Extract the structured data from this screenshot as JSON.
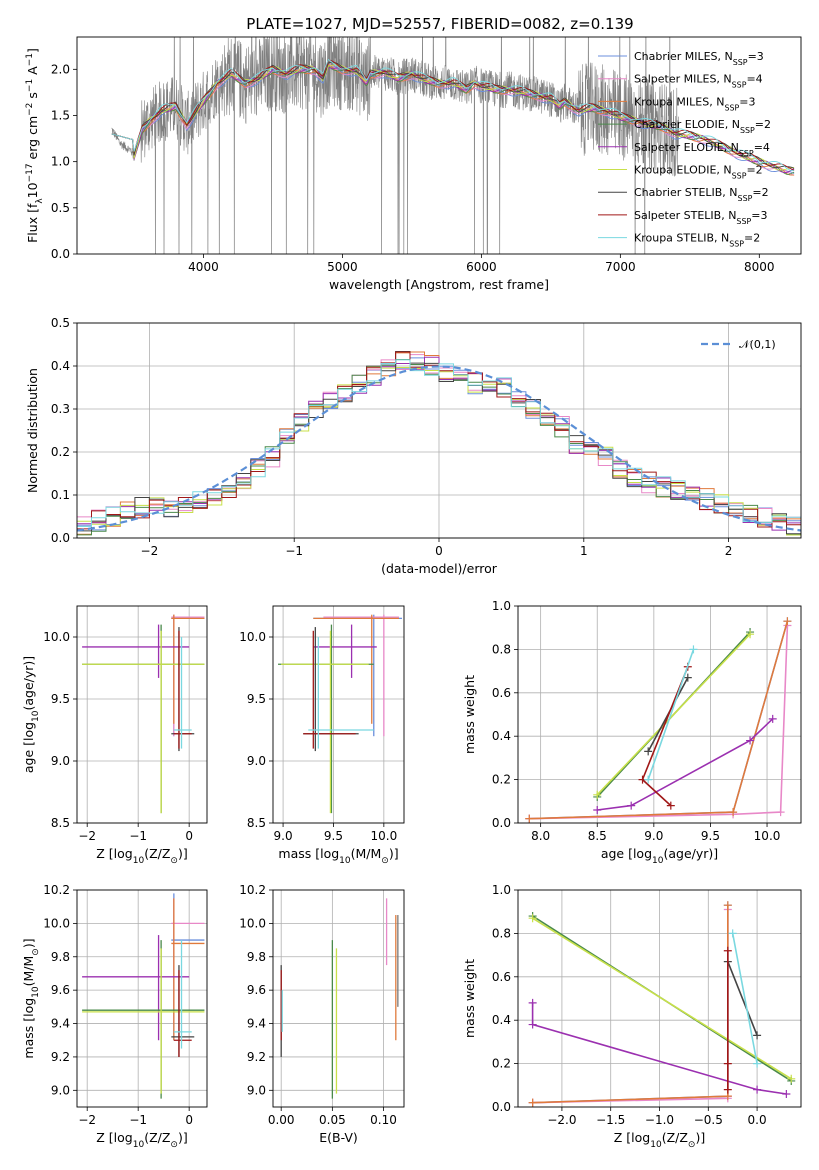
{
  "figure": {
    "title": "PLATE=1027, MJD=52557, FIBERID=0082, z=0.139"
  },
  "chart_data": [
    {
      "id": "spectrum",
      "type": "line",
      "xlabel": "wavelength [Angstrom, rest frame]",
      "ylabel": "Flux [f$_{\\lambda}$10$^{-17}$ erg cm$^{-2}$ s$^{-1}$ A$^{-1}$]",
      "xlim": [
        3090,
        8300
      ],
      "ylim": [
        0,
        2.35
      ],
      "xticks": [
        4000,
        5000,
        6000,
        7000,
        8000
      ],
      "yticks": [
        0.0,
        0.5,
        1.0,
        1.5,
        2.0
      ],
      "ytick_labels": [
        "0.0",
        "0.5",
        "1.0",
        "1.5",
        "2.0"
      ],
      "grid": false,
      "legend_position": "right",
      "data_curve": {
        "color": "#808080",
        "x": [
          3340,
          3400,
          3480,
          3500,
          3560,
          3620,
          3700,
          3800,
          3880,
          3930,
          4000,
          4100,
          4200,
          4300,
          4400,
          4500,
          4600,
          4700,
          4800,
          4860,
          4900,
          5000,
          5100,
          5175,
          5200,
          5300,
          5400,
          5500,
          5600,
          5700,
          5800,
          5890,
          5950,
          6000,
          6100,
          6200,
          6300,
          6400,
          6500,
          6563,
          6600,
          6700,
          6800,
          6900,
          7000,
          7100,
          7200,
          7300,
          7400,
          7500,
          7600,
          7700,
          7800,
          7900,
          8000,
          8100,
          8200
        ],
        "y": [
          1.35,
          1.2,
          1.12,
          1.05,
          1.35,
          1.45,
          1.55,
          1.6,
          1.4,
          1.5,
          1.65,
          1.85,
          1.95,
          1.85,
          1.9,
          2.0,
          1.95,
          2.0,
          2.0,
          1.9,
          2.05,
          2.0,
          1.98,
          1.85,
          1.95,
          1.97,
          1.9,
          1.95,
          1.88,
          1.85,
          1.85,
          1.78,
          1.85,
          1.82,
          1.78,
          1.78,
          1.75,
          1.72,
          1.68,
          1.6,
          1.65,
          1.55,
          1.58,
          1.55,
          1.48,
          1.45,
          1.4,
          1.38,
          1.3,
          1.28,
          1.25,
          1.18,
          1.12,
          1.05,
          1.0,
          0.95,
          0.9
        ]
      },
      "series": [
        {
          "name": "Chabrier MILES, N$_{SSP}$=3",
          "color": "#6b8fdc"
        },
        {
          "name": "Salpeter MILES, N$_{SSP}$=4",
          "color": "#e888c8"
        },
        {
          "name": "Kroupa MILES, N$_{SSP}$=3",
          "color": "#e07a3c"
        },
        {
          "name": "Chabrier ELODIE, N$_{SSP}$=2",
          "color": "#4a8a4a"
        },
        {
          "name": "Salpeter ELODIE, N$_{SSP}$=4",
          "color": "#9b30b0"
        },
        {
          "name": "Kroupa ELODIE, N$_{SSP}$=2",
          "color": "#c8e04a"
        },
        {
          "name": "Chabrier STELIB, N$_{SSP}$=2",
          "color": "#444444"
        },
        {
          "name": "Salpeter STELIB, N$_{SSP}$=3",
          "color": "#a01818"
        },
        {
          "name": "Kroupa STELIB, N$_{SSP}$=2",
          "color": "#7ad8e0"
        }
      ]
    },
    {
      "id": "residuals",
      "type": "line",
      "xlabel": "(data-model)/error",
      "ylabel": "Normed distribution",
      "xlim": [
        -2.5,
        2.5
      ],
      "ylim": [
        0,
        0.5
      ],
      "xticks": [
        -2,
        -1,
        0,
        1,
        2
      ],
      "xtick_labels": [
        "−2",
        "−1",
        "0",
        "1",
        "2"
      ],
      "yticks": [
        0.0,
        0.1,
        0.2,
        0.3,
        0.4,
        0.5
      ],
      "ytick_labels": [
        "0.0",
        "0.1",
        "0.2",
        "0.3",
        "0.4",
        "0.5"
      ],
      "grid": true,
      "legend_position": "top-right",
      "gaussian": {
        "name": "$\\mathcal{N}(0,1)$",
        "color": "#5b8fd6"
      },
      "hist_centers": [
        -2.45,
        -2.35,
        -2.25,
        -2.15,
        -2.05,
        -1.95,
        -1.85,
        -1.75,
        -1.65,
        -1.55,
        -1.45,
        -1.35,
        -1.25,
        -1.15,
        -1.05,
        -0.95,
        -0.85,
        -0.75,
        -0.65,
        -0.55,
        -0.45,
        -0.35,
        -0.25,
        -0.15,
        -0.05,
        0.05,
        0.15,
        0.25,
        0.35,
        0.45,
        0.55,
        0.65,
        0.75,
        0.85,
        0.95,
        1.05,
        1.15,
        1.25,
        1.35,
        1.45,
        1.55,
        1.65,
        1.75,
        1.85,
        1.95,
        2.05,
        2.15,
        2.25,
        2.35,
        2.45
      ],
      "hist_base": [
        0.03,
        0.04,
        0.05,
        0.06,
        0.07,
        0.07,
        0.07,
        0.08,
        0.09,
        0.1,
        0.11,
        0.13,
        0.16,
        0.19,
        0.23,
        0.27,
        0.3,
        0.32,
        0.34,
        0.36,
        0.38,
        0.4,
        0.41,
        0.41,
        0.4,
        0.38,
        0.38,
        0.36,
        0.36,
        0.35,
        0.33,
        0.3,
        0.27,
        0.26,
        0.22,
        0.2,
        0.19,
        0.16,
        0.14,
        0.13,
        0.12,
        0.11,
        0.1,
        0.09,
        0.08,
        0.07,
        0.06,
        0.05,
        0.04,
        0.03
      ]
    },
    {
      "id": "age-vs-z",
      "type": "scatter",
      "xlabel": "Z [log$_{10}$(Z/Z$_{\\odot}$)]",
      "ylabel": "age  [log$_{10}$(age/yr)]",
      "xlim": [
        -2.2,
        0.35
      ],
      "ylim": [
        8.5,
        10.25
      ],
      "xticks": [
        -2,
        -1,
        0
      ],
      "xtick_labels": [
        "−2",
        "−1",
        "0"
      ],
      "yticks": [
        8.5,
        9.0,
        9.5,
        10.0
      ],
      "ytick_labels": [
        "8.5",
        "9.0",
        "9.5",
        "10.0"
      ],
      "grid": true
    },
    {
      "id": "age-vs-mass",
      "type": "scatter",
      "xlabel": "mass [log$_{10}$(M/M$_{\\odot}$)]",
      "ylabel": "",
      "xlim": [
        8.9,
        10.2
      ],
      "ylim": [
        8.5,
        10.25
      ],
      "xticks": [
        9.0,
        9.5,
        10.0
      ],
      "xtick_labels": [
        "9.0",
        "9.5",
        "10.0"
      ],
      "yticks": [
        8.5,
        9.0,
        9.5,
        10.0
      ],
      "ytick_labels": [
        "8.5",
        "9.0",
        "9.5",
        "10.0"
      ],
      "grid": true
    },
    {
      "id": "weight-vs-age",
      "type": "line",
      "xlabel": "age  [log$_{10}$(age/yr)]",
      "ylabel": "mass weight",
      "xlim": [
        7.8,
        10.3
      ],
      "ylim": [
        0,
        1
      ],
      "xticks": [
        8.0,
        8.5,
        9.0,
        9.5,
        10.0
      ],
      "xtick_labels": [
        "8.0",
        "8.5",
        "9.0",
        "9.5",
        "10.0"
      ],
      "yticks": [
        0.0,
        0.2,
        0.4,
        0.6,
        0.8,
        1.0
      ],
      "ytick_labels": [
        "0.0",
        "0.2",
        "0.4",
        "0.6",
        "0.8",
        "1.0"
      ],
      "grid": true
    },
    {
      "id": "mass-vs-z",
      "type": "scatter",
      "xlabel": "Z [log$_{10}$(Z/Z$_{\\odot}$)]",
      "ylabel": "mass [log$_{10}$(M/M$_{\\odot}$)]",
      "xlim": [
        -2.2,
        0.35
      ],
      "ylim": [
        8.9,
        10.2
      ],
      "xticks": [
        -2,
        -1,
        0
      ],
      "xtick_labels": [
        "−2",
        "−1",
        "0"
      ],
      "yticks": [
        9.0,
        9.2,
        9.4,
        9.6,
        9.8,
        10.0,
        10.2
      ],
      "ytick_labels": [
        "9.0",
        "9.2",
        "9.4",
        "9.6",
        "9.8",
        "10.0",
        "10.2"
      ],
      "grid": true
    },
    {
      "id": "mass-vs-ebv",
      "type": "scatter",
      "xlabel": "E(B-V)",
      "ylabel": "",
      "xlim": [
        -0.008,
        0.12
      ],
      "ylim": [
        8.9,
        10.2
      ],
      "xticks": [
        0.0,
        0.05,
        0.1
      ],
      "xtick_labels": [
        "0.00",
        "0.05",
        "0.10"
      ],
      "yticks": [
        9.0,
        9.2,
        9.4,
        9.6,
        9.8,
        10.0,
        10.2
      ],
      "ytick_labels": [
        "9.0",
        "9.2",
        "9.4",
        "9.6",
        "9.8",
        "10.0",
        "10.2"
      ],
      "grid": true
    },
    {
      "id": "weight-vs-z",
      "type": "line",
      "xlabel": "Z [log$_{10}$(Z/Z$_{\\odot}$)]",
      "ylabel": "mass weight",
      "xlim": [
        -2.45,
        0.45
      ],
      "ylim": [
        0,
        1
      ],
      "xticks": [
        -2.0,
        -1.5,
        -1.0,
        -0.5,
        0.0
      ],
      "xtick_labels": [
        "−2.0",
        "−1.5",
        "−1.0",
        "−0.5",
        "0.0"
      ],
      "yticks": [
        0.0,
        0.2,
        0.4,
        0.6,
        0.8,
        1.0
      ],
      "ytick_labels": [
        "0.0",
        "0.2",
        "0.4",
        "0.6",
        "0.8",
        "1.0"
      ],
      "grid": true
    }
  ],
  "fits": [
    {
      "color": "#6b8fdc",
      "ssp": [
        {
          "age": 7.9,
          "z": -2.3,
          "w": 0.02,
          "m": 9.45
        },
        {
          "age": 9.7,
          "z": -0.3,
          "w": 0.05,
          "m": 9.46
        },
        {
          "age": 10.18,
          "z": -0.3,
          "w": 0.93,
          "m": 9.9
        }
      ]
    },
    {
      "color": "#e888c8",
      "ssp": [
        {
          "age": 7.9,
          "z": -2.3,
          "w": 0.02,
          "m": 9.46
        },
        {
          "age": 9.7,
          "z": -0.3,
          "w": 0.04,
          "m": 9.47
        },
        {
          "age": 10.12,
          "z": -0.3,
          "w": 0.05,
          "m": 9.9
        },
        {
          "age": 10.18,
          "z": -0.3,
          "w": 0.91,
          "m": 10.02
        }
      ]
    },
    {
      "color": "#e07a3c",
      "ssp": [
        {
          "age": 7.9,
          "z": -2.3,
          "w": 0.02,
          "m": 9.47
        },
        {
          "age": 9.7,
          "z": -0.3,
          "w": 0.05,
          "m": 9.46
        },
        {
          "age": 10.18,
          "z": -0.3,
          "w": 0.93,
          "m": 9.88
        }
      ]
    },
    {
      "color": "#4a8a4a",
      "ssp": [
        {
          "age": 8.5,
          "z": 0.35,
          "w": 0.12,
          "m": 9.48
        },
        {
          "age": 9.85,
          "z": -2.3,
          "w": 0.88,
          "m": 9.48
        }
      ]
    },
    {
      "color": "#9b30b0",
      "ssp": [
        {
          "age": 8.5,
          "z": 0.3,
          "w": 0.06,
          "m": 9.68
        },
        {
          "age": 8.8,
          "z": 0.0,
          "w": 0.08,
          "m": 9.68
        },
        {
          "age": 9.85,
          "z": -2.3,
          "w": 0.38,
          "m": 9.68
        },
        {
          "age": 10.05,
          "z": -2.3,
          "w": 0.48,
          "m": 9.68
        }
      ]
    },
    {
      "color": "#c8e04a",
      "ssp": [
        {
          "age": 8.5,
          "z": 0.35,
          "w": 0.13,
          "m": 9.47
        },
        {
          "age": 9.85,
          "z": -2.3,
          "w": 0.87,
          "m": 9.47
        }
      ]
    },
    {
      "color": "#444444",
      "ssp": [
        {
          "age": 8.95,
          "z": 0.0,
          "w": 0.33,
          "m": 9.3
        },
        {
          "age": 9.3,
          "z": -0.3,
          "w": 0.67,
          "m": 9.5
        }
      ]
    },
    {
      "color": "#a01818",
      "ssp": [
        {
          "age": 8.9,
          "z": -0.3,
          "w": 0.2,
          "m": 9.3
        },
        {
          "age": 9.15,
          "z": -0.3,
          "w": 0.08,
          "m": 9.3
        },
        {
          "age": 9.3,
          "z": -0.3,
          "w": 0.72,
          "m": 9.5
        }
      ]
    },
    {
      "color": "#7ad8e0",
      "ssp": [
        {
          "age": 8.95,
          "z": 0.0,
          "w": 0.2,
          "m": 9.35
        },
        {
          "age": 9.35,
          "z": -0.25,
          "w": 0.8,
          "m": 9.55
        }
      ]
    }
  ],
  "age_errorbars": [
    {
      "color": "#6b8fdc",
      "z": -0.3,
      "z_lo": -0.35,
      "z_hi": 0.3,
      "age": 10.15,
      "age_lo": 9.2,
      "age_hi": 10.18,
      "m": 9.9,
      "m_lo": 9.3,
      "m_hi": 10.18
    },
    {
      "color": "#e888c8",
      "z": -0.3,
      "z_lo": -0.35,
      "z_hi": 0.3,
      "age": 10.16,
      "age_lo": 9.2,
      "age_hi": 10.18,
      "m": 10.0,
      "m_lo": 9.4,
      "m_hi": 10.15
    },
    {
      "color": "#e07a3c",
      "z": -0.3,
      "z_lo": -0.35,
      "z_hi": 0.3,
      "age": 10.15,
      "age_lo": 9.3,
      "age_hi": 10.18,
      "m": 9.88,
      "m_lo": 9.3,
      "m_hi": 10.15
    },
    {
      "color": "#9b30b0",
      "z": -0.6,
      "z_lo": -2.1,
      "z_hi": -0.0,
      "age": 9.92,
      "age_lo": 9.67,
      "age_hi": 10.1,
      "m": 9.68,
      "m_lo": 9.3,
      "m_hi": 9.93
    },
    {
      "color": "#4a8a4a",
      "z": -0.55,
      "z_lo": -2.1,
      "z_hi": 0.3,
      "age": 9.78,
      "age_lo": 8.58,
      "age_hi": 10.1,
      "m": 9.48,
      "m_lo": 8.95,
      "m_hi": 9.9
    },
    {
      "color": "#c8e04a",
      "z": -0.55,
      "z_lo": -2.1,
      "z_hi": 0.3,
      "age": 9.78,
      "age_lo": 8.58,
      "age_hi": 10.05,
      "m": 9.47,
      "m_lo": 8.98,
      "m_hi": 9.85
    },
    {
      "color": "#444444",
      "z": -0.2,
      "z_lo": -0.35,
      "z_hi": 0.1,
      "age": 9.22,
      "age_lo": 9.08,
      "age_hi": 10.08,
      "m": 9.32,
      "m_lo": 9.2,
      "m_hi": 9.75
    },
    {
      "color": "#a01818",
      "z": -0.2,
      "z_lo": -0.3,
      "z_hi": 0.05,
      "age": 9.22,
      "age_lo": 9.1,
      "age_hi": 10.05,
      "m": 9.3,
      "m_lo": 9.2,
      "m_hi": 9.72
    },
    {
      "color": "#7ad8e0",
      "z": -0.15,
      "z_lo": -0.3,
      "z_hi": 0.05,
      "age": 9.25,
      "age_lo": 9.1,
      "age_hi": 10.0,
      "m": 9.35,
      "m_lo": 9.25,
      "m_hi": 9.9
    }
  ],
  "ebv_bars": [
    {
      "color": "#444444",
      "ebv": 0.0,
      "lo": 9.2,
      "hi": 9.75
    },
    {
      "color": "#a01818",
      "ebv": 0.0,
      "lo": 9.3,
      "hi": 9.72
    },
    {
      "color": "#7ad8e0",
      "ebv": 0.001,
      "lo": 9.35,
      "hi": 9.6
    },
    {
      "color": "#4a8a4a",
      "ebv": 0.05,
      "lo": 8.95,
      "hi": 9.9
    },
    {
      "color": "#c8e04a",
      "ebv": 0.054,
      "lo": 8.98,
      "hi": 9.85
    },
    {
      "color": "#e888c8",
      "ebv": 0.103,
      "lo": 9.75,
      "hi": 10.15
    },
    {
      "color": "#e07a3c",
      "ebv": 0.112,
      "lo": 9.3,
      "hi": 10.05
    },
    {
      "color": "#777777",
      "ebv": 0.114,
      "lo": 9.5,
      "hi": 10.05
    }
  ]
}
